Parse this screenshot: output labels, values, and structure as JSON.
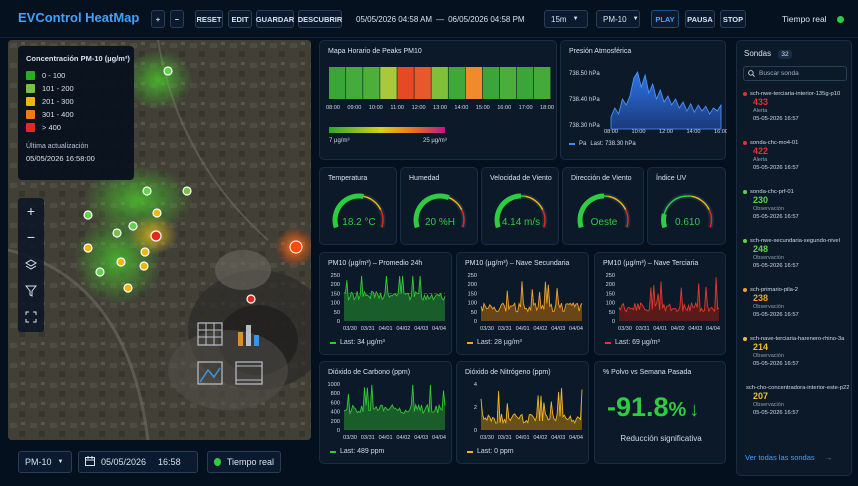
{
  "app": {
    "title": "EVControl HeatMap"
  },
  "toolbar": {
    "zoom_in": "+",
    "zoom_out": "−",
    "reset": "RESET",
    "edit": "EDIT",
    "guardar": "GUARDAR",
    "descubrir": "DESCUBRIR",
    "range_start": "05/05/2026 04:58 AM",
    "range_sep": "—",
    "range_end": "06/05/2026 04:58 PM",
    "interval": "15m",
    "pollutant": "PM-10",
    "play": "PLAY",
    "pausa": "PAUSA",
    "stop": "STOP",
    "realtime": "Tiempo real"
  },
  "legend": {
    "title": "Concentración PM-10 (µg/m³)",
    "items": [
      {
        "label": "0 - 100",
        "color": "#2ea829"
      },
      {
        "label": "101 - 200",
        "color": "#7ac143"
      },
      {
        "label": "201 - 300",
        "color": "#f1b60b"
      },
      {
        "label": "301 - 400",
        "color": "#f07a14"
      },
      {
        "label": "> 400",
        "color": "#e02b1c"
      }
    ],
    "update_label": "Última actualización",
    "update_value": "05/05/2026 16:58:00"
  },
  "bottom": {
    "pollutant": "PM-10",
    "date": "05/05/2026",
    "time": "16:58",
    "realtime": "Tiempo real"
  },
  "heatmap_card": {
    "title": "Mapa Horario de Peaks PM10",
    "hours": [
      "08:00",
      "09:00",
      "10:00",
      "11:00",
      "12:00",
      "13:00",
      "14:00",
      "15:00",
      "16:00",
      "17:00",
      "18:00"
    ],
    "cell_colors": [
      "#3aa63a",
      "#43ac3a",
      "#4caf3a",
      "#a9c93a",
      "#e64a24",
      "#e9582a",
      "#7fbf3a",
      "#3fa83a",
      "#f08a2c",
      "#3aa63a",
      "#4cae3a",
      "#3aa63a",
      "#45aa3a"
    ],
    "scale_min": "7 µg/m³",
    "scale_max": "25 µg/m³"
  },
  "pressure_card": {
    "title": "Presión Atmosférica",
    "yticks": [
      "738.50 hPa",
      "738.40 hPa",
      "738.30 hPa"
    ],
    "xticks": [
      "08:00",
      "10:00",
      "12:00",
      "14:00",
      "16:00"
    ],
    "legend_unit": "Pa",
    "last": "Last: 738.30 hPa"
  },
  "gauges": [
    {
      "title": "Temperatura",
      "value": "18.2 °C",
      "color": "#2ecc40",
      "fill": 0.55
    },
    {
      "title": "Humedad",
      "value": "20 %H",
      "color": "#2ecc40",
      "fill": 0.6
    },
    {
      "title": "Velocidad de Viento",
      "value": "4.14 m/s",
      "color": "#2ecc40",
      "fill": 0.5
    },
    {
      "title": "Dirección de Viento",
      "value": "Oeste",
      "color": "#2ecc40",
      "fill": 0.5
    },
    {
      "title": "Índice UV",
      "value": "0.610",
      "color": "#2ecc40",
      "fill": 0.15
    }
  ],
  "line_charts": [
    {
      "title": "PM10 (µg/m³) – Promedio 24h",
      "color": "#32c832",
      "fill": "#1b6a2a",
      "xticks": [
        "03/30",
        "03/31",
        "04/01",
        "04/02",
        "04/03",
        "04/04"
      ],
      "yticks": [
        "250",
        "200",
        "150",
        "100",
        "50",
        "0"
      ],
      "last": "Last: 34 µg/m³",
      "threshold": 150
    },
    {
      "title": "PM10 (µg/m³) – Nave Secundaria",
      "color": "#f0a22a",
      "fill": "#7a4f14",
      "xticks": [
        "03/30",
        "03/31",
        "04/01",
        "04/02",
        "04/03",
        "04/04"
      ],
      "yticks": [
        "250",
        "200",
        "150",
        "100",
        "50",
        "0"
      ],
      "last": "Last: 28 µg/m³"
    },
    {
      "title": "PM10 (µg/m³) – Nave Terciaria",
      "color": "#e03a2c",
      "fill": "#6a1b18",
      "xticks": [
        "03/30",
        "03/31",
        "04/01",
        "04/02",
        "04/03",
        "04/04"
      ],
      "yticks": [
        "250",
        "200",
        "150",
        "100",
        "50",
        "0"
      ],
      "last": "Last: 69 µg/m³"
    },
    {
      "title": "Dióxido de Carbono (ppm)",
      "color": "#32c832",
      "fill": "#1b6a2a",
      "xticks": [
        "03/30",
        "03/31",
        "04/01",
        "04/02",
        "04/03",
        "04/04"
      ],
      "yticks": [
        "1000",
        "800",
        "600",
        "400",
        "200",
        "0"
      ],
      "last": "Last: 489 ppm"
    },
    {
      "title": "Dióxido de Nitrógeno (ppm)",
      "color": "#f0b52a",
      "fill": "#7a5a14",
      "xticks": [
        "03/30",
        "03/31",
        "04/01",
        "04/02",
        "04/03",
        "04/04"
      ],
      "yticks": [
        "4",
        "2",
        "0"
      ],
      "last": "Last: 0 ppm"
    }
  ],
  "polvo_card": {
    "title": "% Polvo vs Semana Pasada",
    "value": "-91.8",
    "unit": "%",
    "arrow": "↓",
    "caption": "Reducción significativa"
  },
  "sidebar": {
    "title": "Sondas",
    "count": "32",
    "search_placeholder": "Buscar sonda",
    "footer": "Ver todas las sondas",
    "items": [
      {
        "name": "sch-nwe-terciaria-interior-135g-p10",
        "value": "433",
        "status": "Alerta",
        "time": "05-05-2026 16:57",
        "color": "#e0342a"
      },
      {
        "name": "sonda-chc-mo4-01",
        "value": "422",
        "status": "Alerta",
        "time": "05-05-2026 16:57",
        "color": "#e0342a"
      },
      {
        "name": "sonda-chc-prf-01",
        "value": "230",
        "status": "Observación",
        "time": "05-05-2026 16:57",
        "color": "#5fd34a"
      },
      {
        "name": "sch-nwe-secundaria-segundo-nivel",
        "value": "248",
        "status": "Observación",
        "time": "05-05-2026 16:57",
        "color": "#5fd34a"
      },
      {
        "name": "sch-primario-pila-2",
        "value": "238",
        "status": "Observación",
        "time": "05-05-2026 16:57",
        "color": "#f0a22a"
      },
      {
        "name": "sch-nave-terciaria-harenero-rhino-3a",
        "value": "214",
        "status": "Observación",
        "time": "05-05-2026 16:57",
        "color": "#f0c02a"
      },
      {
        "name": "sch-cho-concentradora-interior-este-p22",
        "value": "207",
        "status": "Observación",
        "time": "05-05-2026 16:57",
        "color": "#f0c02a"
      }
    ]
  }
}
